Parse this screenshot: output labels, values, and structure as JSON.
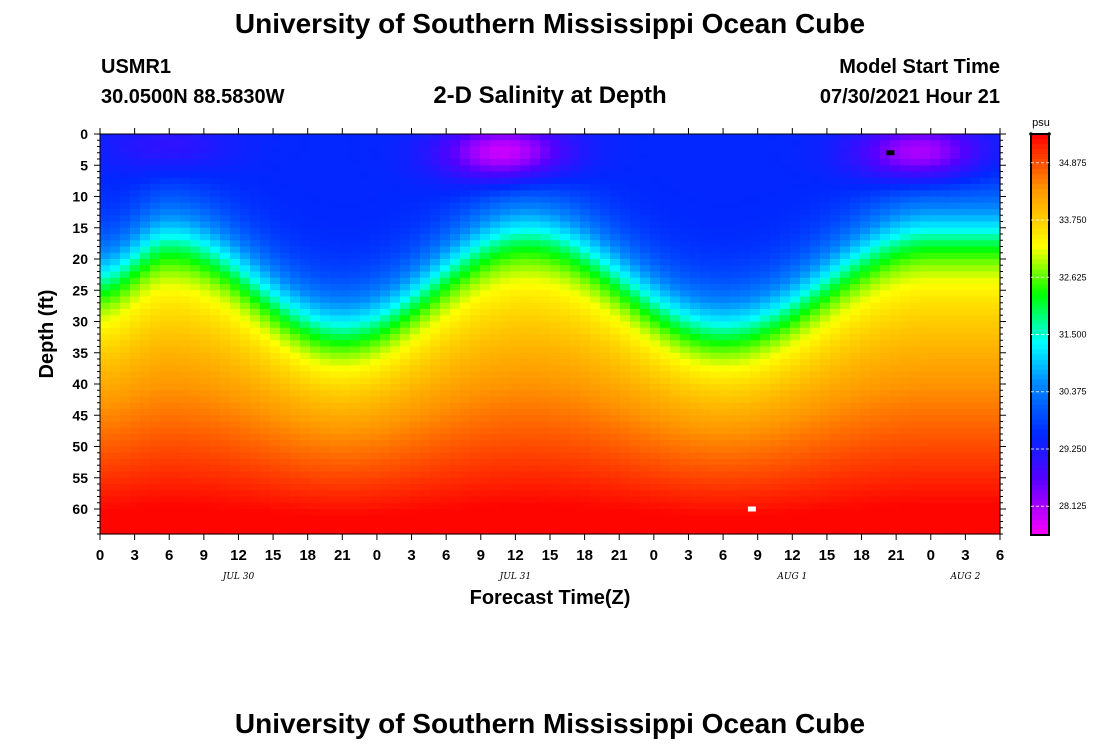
{
  "header": {
    "title": "University of Southern Mississippi Ocean Cube",
    "station_id": "USMR1",
    "station_location": "30.0500N  88.5830W",
    "plot_title": "2-D Salinity at Depth",
    "model_start_label": "Model Start Time",
    "model_start_value": "07/30/2021 Hour 21"
  },
  "footer": {
    "title": "University of Southern Mississippi Ocean Cube"
  },
  "chart_data": {
    "type": "heatmap",
    "title": "2-D Salinity at Depth",
    "xlabel": "Forecast Time(Z)",
    "ylabel": "Depth (ft)",
    "x_range_hours": [
      0,
      78
    ],
    "y_range_ft": [
      0,
      64
    ],
    "y_ticks": [
      0,
      5,
      10,
      15,
      20,
      25,
      30,
      35,
      40,
      45,
      50,
      55,
      60
    ],
    "y_tick_labels": [
      "0",
      "5",
      "10",
      "15",
      "20",
      "25",
      "30",
      "35",
      "40",
      "45",
      "50",
      "55",
      "60"
    ],
    "x_tick_labels": [
      "0",
      "3",
      "6",
      "9",
      "12",
      "15",
      "18",
      "21",
      "0",
      "3",
      "6",
      "9",
      "12",
      "15",
      "18",
      "21",
      "0",
      "3",
      "6",
      "9",
      "12",
      "15",
      "18",
      "21",
      "0",
      "3",
      "6"
    ],
    "date_labels": [
      {
        "text": "JUL 30",
        "hour": 12
      },
      {
        "text": "JUL 31",
        "hour": 36
      },
      {
        "text": "AUG 1",
        "hour": 60
      },
      {
        "text": "AUG 2",
        "hour": 75
      }
    ],
    "colorbar": {
      "unit": "psu",
      "min": 27.56,
      "max": 35.44,
      "tick_values": [
        34.875,
        33.75,
        32.625,
        31.5,
        30.375,
        29.25,
        28.125
      ],
      "tick_labels": [
        "34.875",
        "33.750",
        "32.625",
        "31.500",
        "30.375",
        "29.250",
        "28.125"
      ]
    },
    "field_description": {
      "surface_low_salinity_cores": [
        {
          "hour": 6,
          "depth_ft": 2,
          "value_psu": 29.0
        },
        {
          "hour": 17,
          "depth_ft": 4,
          "value_psu": 29.5
        },
        {
          "hour": 35,
          "depth_ft": 3,
          "value_psu": 27.8
        },
        {
          "hour": 71,
          "depth_ft": 3,
          "value_psu": 28.0
        }
      ],
      "halocline_depth_ft": [
        {
          "hour": 0,
          "depth_ft": 22
        },
        {
          "hour": 6,
          "depth_ft": 16
        },
        {
          "hour": 21,
          "depth_ft": 30
        },
        {
          "hour": 37,
          "depth_ft": 15
        },
        {
          "hour": 54,
          "depth_ft": 30
        },
        {
          "hour": 72,
          "depth_ft": 15
        },
        {
          "hour": 78,
          "depth_ft": 15
        }
      ],
      "bottom_value_psu": 35.4
    },
    "markers": [
      {
        "hour": 68.5,
        "depth_ft": 3,
        "color": "#000000"
      },
      {
        "hour": 56.5,
        "depth_ft": 60,
        "color": "#ffffff"
      }
    ]
  }
}
